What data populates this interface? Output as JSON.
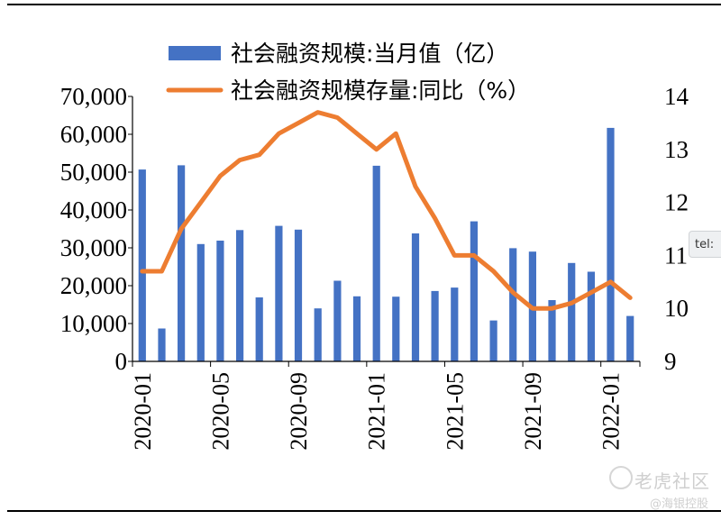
{
  "chart_data": {
    "type": "bar",
    "legend": {
      "placement": "top",
      "items": [
        {
          "label": "社会融资规模:当月值（亿）",
          "kind": "bar",
          "color": "#4472C4"
        },
        {
          "label": "社会融资规模存量:同比（%）",
          "kind": "line",
          "color": "#ED7D31"
        }
      ]
    },
    "x_tick_labels": [
      "2020-01",
      "2020-05",
      "2020-09",
      "2021-01",
      "2021-05",
      "2021-09",
      "2022-01"
    ],
    "categories": [
      "2020-01",
      "2020-02",
      "2020-03",
      "2020-04",
      "2020-05",
      "2020-06",
      "2020-07",
      "2020-08",
      "2020-09",
      "2020-10",
      "2020-11",
      "2020-12",
      "2021-01",
      "2021-02",
      "2021-03",
      "2021-04",
      "2021-05",
      "2021-06",
      "2021-07",
      "2021-08",
      "2021-09",
      "2021-10",
      "2021-11",
      "2021-12",
      "2022-01",
      "2022-02"
    ],
    "series": [
      {
        "name": "社会融资规模:当月值（亿）",
        "type": "bar",
        "axis": "left",
        "color": "#4472C4",
        "values": [
          50700,
          8700,
          51800,
          31000,
          31900,
          34700,
          16900,
          35800,
          34800,
          14000,
          21300,
          17200,
          51700,
          17100,
          33800,
          18600,
          19500,
          37000,
          10800,
          29900,
          29000,
          16200,
          26000,
          23700,
          61700,
          12000
        ]
      },
      {
        "name": "社会融资规模存量:同比（%）",
        "type": "line",
        "axis": "right",
        "color": "#ED7D31",
        "values": [
          10.7,
          10.7,
          11.5,
          12.0,
          12.5,
          12.8,
          12.9,
          13.3,
          13.5,
          13.7,
          13.6,
          13.3,
          13.0,
          13.3,
          12.3,
          11.7,
          11.0,
          11.0,
          10.7,
          10.3,
          10.0,
          10.0,
          10.1,
          10.3,
          10.5,
          10.2
        ]
      }
    ],
    "y_left": {
      "min": 0,
      "max": 70000,
      "tick_labels": [
        "0",
        "10,000",
        "20,000",
        "30,000",
        "40,000",
        "50,000",
        "60,000",
        "70,000"
      ]
    },
    "y_right": {
      "min": 9,
      "max": 14,
      "tick_labels": [
        "9",
        "10",
        "11",
        "12",
        "13",
        "14"
      ]
    },
    "grid": false
  },
  "watermark": {
    "brand": "老虎社区",
    "handle": "@海银控股"
  },
  "overlay_tab": "tel:"
}
